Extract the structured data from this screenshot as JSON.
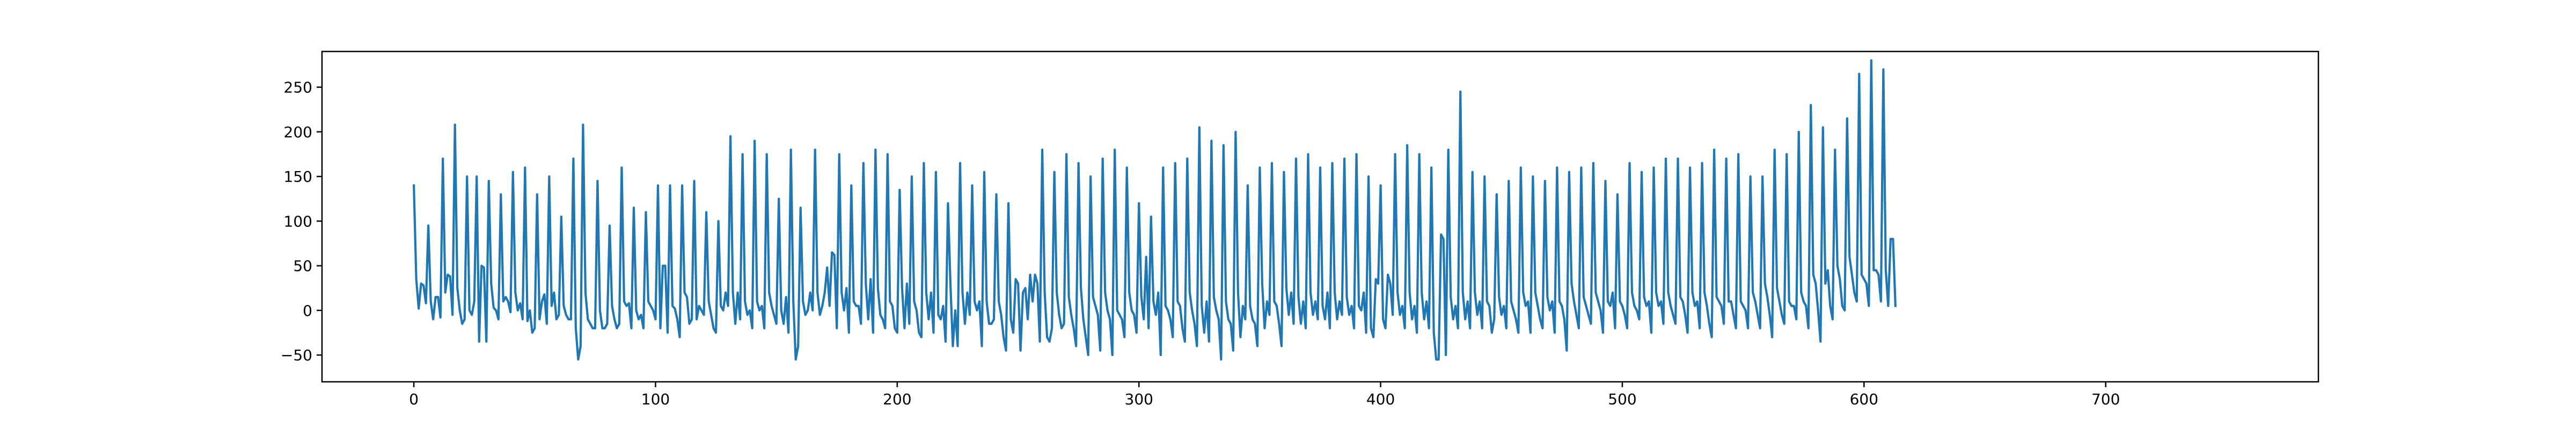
{
  "chart_data": {
    "type": "line",
    "title": "",
    "xlabel": "",
    "ylabel": "",
    "xlim": [
      -38,
      788
    ],
    "ylim": [
      -80,
      290
    ],
    "grid": false,
    "legend": "none",
    "x_ticks": [
      0,
      100,
      200,
      300,
      400,
      500,
      600,
      700
    ],
    "y_ticks": [
      -50,
      0,
      50,
      100,
      150,
      200,
      250
    ],
    "x_tick_labels": [
      "0",
      "100",
      "200",
      "300",
      "400",
      "500",
      "600",
      "700"
    ],
    "y_tick_labels": [
      "−50",
      "0",
      "50",
      "100",
      "150",
      "200",
      "250"
    ],
    "x_start": 0,
    "x_step": 1,
    "color": "#1f77b4",
    "series": [
      {
        "values": [
          140,
          35,
          2,
          30,
          28,
          8,
          95,
          10,
          -10,
          15,
          15,
          -8,
          170,
          20,
          40,
          38,
          -5,
          208,
          25,
          0,
          -15,
          -10,
          150,
          0,
          -5,
          10,
          150,
          -35,
          50,
          48,
          -35,
          145,
          30,
          3,
          0,
          -10,
          130,
          10,
          15,
          10,
          -2,
          155,
          20,
          0,
          8,
          -10,
          160,
          -12,
          0,
          -25,
          -20,
          130,
          -10,
          10,
          18,
          -15,
          150,
          5,
          20,
          -10,
          -5,
          105,
          5,
          -5,
          -10,
          -10,
          170,
          -20,
          -55,
          -40,
          208,
          20,
          -10,
          -15,
          -20,
          -20,
          145,
          0,
          -20,
          -20,
          -15,
          95,
          5,
          -10,
          -20,
          -15,
          160,
          10,
          5,
          8,
          -20,
          115,
          0,
          -10,
          -5,
          -20,
          110,
          10,
          5,
          0,
          -10,
          140,
          -20,
          50,
          50,
          -25,
          140,
          5,
          2,
          -10,
          -30,
          140,
          20,
          15,
          -15,
          -10,
          145,
          -10,
          5,
          0,
          -5,
          110,
          10,
          -5,
          -20,
          -25,
          100,
          5,
          0,
          20,
          5,
          195,
          20,
          -15,
          20,
          -10,
          175,
          10,
          -5,
          0,
          -20,
          190,
          10,
          0,
          5,
          -20,
          175,
          20,
          5,
          -5,
          -15,
          125,
          0,
          -15,
          15,
          -25,
          180,
          10,
          -55,
          -40,
          115,
          10,
          -5,
          0,
          20,
          0,
          180,
          20,
          -5,
          5,
          20,
          48,
          5,
          65,
          62,
          -20,
          175,
          20,
          0,
          25,
          -25,
          140,
          10,
          5,
          5,
          -15,
          165,
          30,
          -10,
          35,
          -25,
          180,
          25,
          -5,
          -10,
          -20,
          175,
          10,
          5,
          -20,
          -25,
          135,
          25,
          -20,
          30,
          -15,
          150,
          10,
          0,
          -25,
          -30,
          165,
          20,
          -10,
          20,
          -25,
          155,
          -5,
          -10,
          5,
          -35,
          120,
          30,
          -40,
          0,
          -40,
          165,
          20,
          -15,
          20,
          -5,
          140,
          10,
          0,
          10,
          -40,
          155,
          10,
          -15,
          -15,
          -10,
          130,
          10,
          -5,
          -30,
          -45,
          120,
          -10,
          -25,
          35,
          30,
          -45,
          20,
          25,
          -10,
          40,
          10,
          40,
          30,
          -35,
          180,
          20,
          -30,
          -35,
          -20,
          155,
          20,
          -5,
          -20,
          -15,
          175,
          15,
          -5,
          -20,
          -40,
          165,
          25,
          -10,
          -30,
          -50,
          150,
          15,
          5,
          -5,
          -45,
          170,
          20,
          0,
          -10,
          -50,
          180,
          0,
          -5,
          -10,
          -30,
          160,
          20,
          0,
          -5,
          -25,
          120,
          15,
          -10,
          60,
          -20,
          105,
          10,
          -5,
          20,
          -50,
          160,
          5,
          0,
          -10,
          -30,
          165,
          10,
          5,
          -20,
          -35,
          170,
          20,
          0,
          -15,
          -40,
          205,
          5,
          -25,
          10,
          -35,
          190,
          15,
          0,
          -10,
          -55,
          185,
          10,
          -10,
          -15,
          -45,
          200,
          20,
          -30,
          5,
          -10,
          140,
          5,
          -10,
          -15,
          -40,
          160,
          30,
          -20,
          10,
          -5,
          165,
          10,
          5,
          -15,
          -40,
          155,
          25,
          -5,
          20,
          -15,
          170,
          15,
          -15,
          10,
          -20,
          175,
          20,
          -5,
          10,
          -10,
          160,
          5,
          -10,
          20,
          -20,
          165,
          20,
          -10,
          10,
          -5,
          170,
          15,
          -5,
          5,
          -20,
          175,
          5,
          0,
          20,
          -25,
          150,
          -20,
          -30,
          35,
          30,
          140,
          -10,
          -20,
          40,
          30,
          -5,
          175,
          20,
          -5,
          5,
          -20,
          185,
          20,
          -10,
          5,
          -25,
          175,
          20,
          -10,
          10,
          -20,
          160,
          -25,
          -55,
          -55,
          85,
          80,
          -50,
          180,
          15,
          -10,
          5,
          -20,
          245,
          20,
          -10,
          10,
          -20,
          155,
          20,
          -5,
          10,
          -20,
          150,
          10,
          5,
          -25,
          -10,
          130,
          15,
          -5,
          5,
          -20,
          145,
          10,
          0,
          -10,
          -25,
          160,
          20,
          5,
          10,
          -25,
          150,
          20,
          5,
          -10,
          -20,
          145,
          15,
          0,
          10,
          -25,
          160,
          10,
          5,
          -10,
          -45,
          155,
          30,
          10,
          -5,
          -20,
          160,
          15,
          5,
          -5,
          -15,
          165,
          20,
          10,
          0,
          -25,
          145,
          10,
          5,
          20,
          -20,
          130,
          10,
          5,
          -5,
          -20,
          165,
          20,
          5,
          0,
          -10,
          155,
          15,
          5,
          10,
          -25,
          160,
          20,
          5,
          10,
          -15,
          170,
          20,
          5,
          -5,
          -15,
          170,
          15,
          10,
          -5,
          -25,
          160,
          20,
          5,
          10,
          -20,
          165,
          20,
          5,
          -15,
          -30,
          180,
          15,
          10,
          5,
          -15,
          170,
          10,
          10,
          -5,
          -20,
          175,
          10,
          5,
          0,
          -20,
          150,
          20,
          10,
          -5,
          -20,
          150,
          30,
          15,
          -5,
          -30,
          180,
          25,
          10,
          -5,
          -15,
          175,
          10,
          5,
          5,
          -10,
          200,
          20,
          10,
          5,
          -20,
          230,
          40,
          30,
          0,
          -35,
          205,
          30,
          45,
          5,
          -10,
          180,
          50,
          35,
          5,
          0,
          215,
          60,
          40,
          20,
          10,
          265,
          40,
          35,
          30,
          5,
          280,
          45,
          45,
          40,
          10,
          270,
          45,
          5,
          80,
          80,
          5
        ]
      }
    ]
  }
}
